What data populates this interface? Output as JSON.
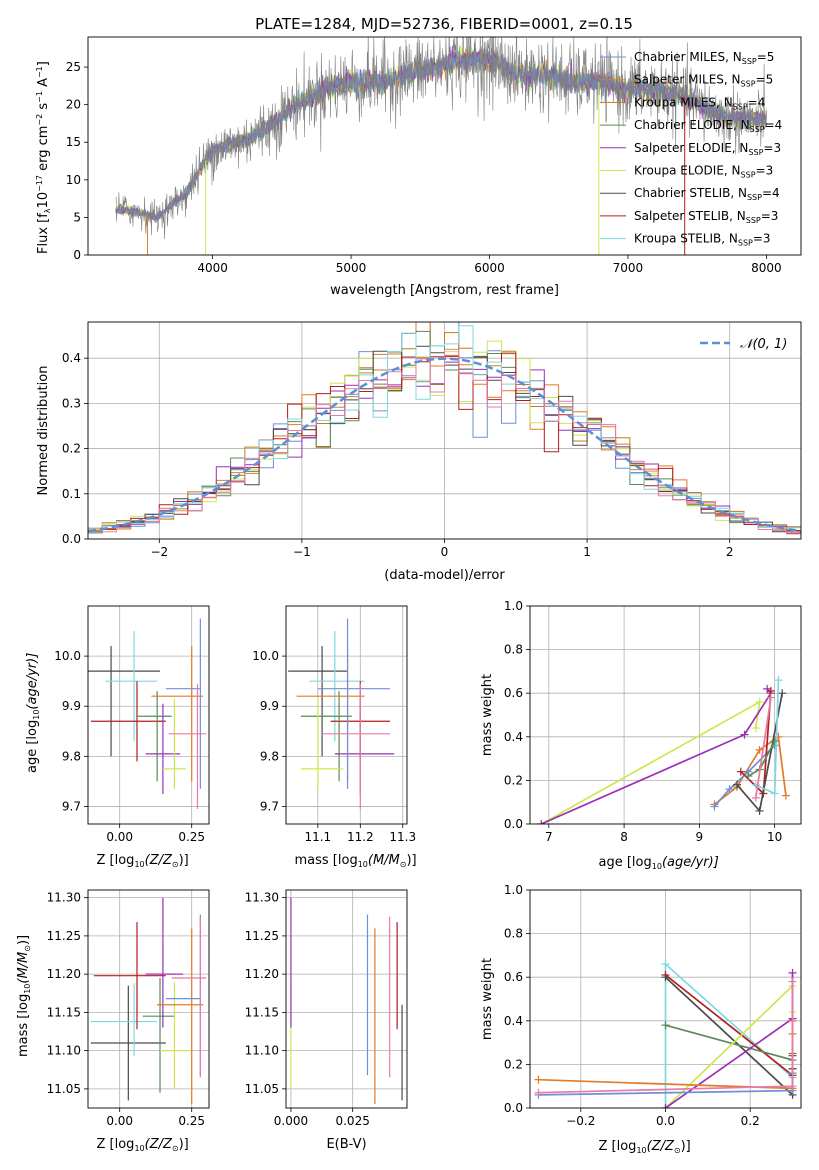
{
  "figure": {
    "title": "PLATE=1284, MJD=52736, FIBERID=0001, z=0.15"
  },
  "colors": {
    "Chabrier MILES": "#6f8fd8",
    "Salpeter MILES": "#e07b27",
    "Kroupa MILES": "#c47a16",
    "Chabrier ELODIE": "#5a8a5a",
    "Salpeter ELODIE": "#9b30b5",
    "Kroupa ELODIE": "#cde84e",
    "Chabrier STELIB": "#4a4a4a",
    "Salpeter STELIB": "#b71c1c",
    "Kroupa STELIB": "#7fd8e0",
    "pink": "#e87aa5",
    "data": "#7f7f7f",
    "normal": "#5b8fd8"
  },
  "chart_data": [
    {
      "id": "spectrum",
      "type": "line",
      "xlabel": "wavelength [Angstrom, rest frame]",
      "ylabel_parts": [
        "Flux [f",
        "λ",
        "10",
        "−17",
        " erg cm",
        "−2",
        " s",
        "−1",
        " A",
        "−1",
        "]"
      ],
      "xlim": [
        3100,
        8250
      ],
      "ylim": [
        0,
        29
      ],
      "xticks": [
        4000,
        5000,
        6000,
        7000,
        8000
      ],
      "yticks": [
        0,
        5,
        10,
        15,
        20,
        25
      ],
      "wavelength_range": [
        3300,
        8000
      ],
      "continuum_x": [
        3300,
        3400,
        3600,
        3800,
        4000,
        4200,
        4400,
        4600,
        4800,
        5000,
        5200,
        5400,
        5600,
        5800,
        6000,
        6200,
        6400,
        6600,
        6800,
        7000,
        7200,
        7400,
        7600,
        7800,
        8000
      ],
      "continuum_y": [
        6,
        6,
        5,
        8,
        14,
        15,
        17,
        20,
        22,
        23,
        23,
        24,
        25,
        26,
        26,
        24,
        24,
        23,
        23,
        22,
        22,
        21,
        19,
        18,
        18
      ],
      "legend": [
        {
          "label": "Chabrier MILES",
          "n": "5"
        },
        {
          "label": "Salpeter MILES",
          "n": "5"
        },
        {
          "label": "Kroupa MILES",
          "n": "4"
        },
        {
          "label": "Chabrier ELODIE",
          "n": "4"
        },
        {
          "label": "Salpeter ELODIE",
          "n": "3"
        },
        {
          "label": "Kroupa ELODIE",
          "n": "3"
        },
        {
          "label": "Chabrier STELIB",
          "n": "4"
        },
        {
          "label": "Salpeter STELIB",
          "n": "3"
        },
        {
          "label": "Kroupa STELIB",
          "n": "3"
        }
      ],
      "legend_n_label": "N",
      "legend_n_sub": "SSP"
    },
    {
      "id": "residuals",
      "type": "histogram",
      "xlabel": "(data-model)/error",
      "ylabel": "Normed distribution",
      "xlim": [
        -2.5,
        2.5
      ],
      "ylim": [
        0,
        0.48
      ],
      "xticks": [
        -2,
        -1,
        0,
        1,
        2
      ],
      "xticklabels": [
        "−2",
        "−1",
        "0",
        "1",
        "2"
      ],
      "yticks": [
        0.0,
        0.1,
        0.2,
        0.3,
        0.4
      ],
      "grid": true,
      "bin_width": 0.1,
      "legend_label": "𝒩(0, 1)",
      "legend_position": "top-right"
    },
    {
      "id": "age-vs-Z",
      "type": "errorbar",
      "xlabel_parts": [
        "Z [log",
        "10",
        "(Z/Z",
        "⊙",
        ")]"
      ],
      "ylabel_parts": [
        "age  [log",
        "10",
        "(age/yr)]"
      ],
      "xlim": [
        -0.11,
        0.31
      ],
      "ylim": [
        9.665,
        10.1
      ],
      "xticks": [
        0.0,
        0.25
      ],
      "xticklabels": [
        "0.00",
        "0.25"
      ],
      "yticks": [
        9.7,
        9.8,
        9.9,
        10.0
      ],
      "grid": true,
      "points": [
        {
          "series": "Chabrier STELIB",
          "x": -0.03,
          "xerr": [
            0.08,
            0.17
          ],
          "y": 9.97,
          "yerr": [
            0.17,
            0.05
          ]
        },
        {
          "series": "Kroupa STELIB",
          "x": 0.05,
          "xerr": [
            0.1,
            0.08
          ],
          "y": 9.95,
          "yerr": [
            0.12,
            0.1
          ]
        },
        {
          "series": "Salpeter STELIB",
          "x": 0.06,
          "xerr": [
            0.16,
            0.1
          ],
          "y": 9.87,
          "yerr": [
            0.08,
            0.08
          ]
        },
        {
          "series": "Chabrier ELODIE",
          "x": 0.13,
          "xerr": [
            0.07,
            0.05
          ],
          "y": 9.88,
          "yerr": [
            0.13,
            0.05
          ]
        },
        {
          "series": "Salpeter ELODIE",
          "x": 0.15,
          "xerr": [
            0.06,
            0.06
          ],
          "y": 9.805,
          "yerr": [
            0.08,
            0.1
          ]
        },
        {
          "series": "Kroupa ELODIE",
          "x": 0.19,
          "xerr": [
            0.04,
            0.04
          ],
          "y": 9.775,
          "yerr": [
            0.04,
            0.14
          ]
        },
        {
          "series": "Salpeter MILES",
          "x": 0.25,
          "xerr": [
            0.14,
            0.04
          ],
          "y": 9.92,
          "yerr": [
            0.17,
            0.1
          ]
        },
        {
          "series": "Chabrier MILES",
          "x": 0.28,
          "xerr": [
            0.12,
            0.0
          ],
          "y": 9.935,
          "yerr": [
            0.2,
            0.14
          ]
        },
        {
          "series": "pink",
          "x": 0.27,
          "xerr": [
            0.1,
            0.03
          ],
          "y": 9.845,
          "yerr": [
            0.15,
            0.1
          ]
        }
      ]
    },
    {
      "id": "age-vs-mass",
      "type": "errorbar",
      "xlabel_parts": [
        "mass [log",
        "10",
        "(M/M",
        "⊙",
        ")]"
      ],
      "ylabel_parts": [],
      "xlim": [
        11.025,
        11.31
      ],
      "ylim": [
        9.665,
        10.1
      ],
      "xticks": [
        11.1,
        11.2,
        11.3
      ],
      "xticklabels": [
        "11.1",
        "11.2",
        "11.3"
      ],
      "yticks": [
        9.7,
        9.8,
        9.9,
        10.0
      ],
      "grid": true,
      "points": [
        {
          "series": "Chabrier STELIB",
          "x": 11.11,
          "xerr": [
            0.08,
            0.06
          ],
          "y": 9.97,
          "yerr": [
            0.17,
            0.05
          ]
        },
        {
          "series": "Kroupa STELIB",
          "x": 11.14,
          "xerr": [
            0.06,
            0.07
          ],
          "y": 9.95,
          "yerr": [
            0.12,
            0.1
          ]
        },
        {
          "series": "Salpeter STELIB",
          "x": 11.2,
          "xerr": [
            0.07,
            0.07
          ],
          "y": 9.87,
          "yerr": [
            0.08,
            0.08
          ]
        },
        {
          "series": "Chabrier ELODIE",
          "x": 11.15,
          "xerr": [
            0.09,
            0.03
          ],
          "y": 9.88,
          "yerr": [
            0.13,
            0.05
          ]
        },
        {
          "series": "Salpeter ELODIE",
          "x": 11.2,
          "xerr": [
            0.06,
            0.08
          ],
          "y": 9.805,
          "yerr": [
            0.08,
            0.1
          ]
        },
        {
          "series": "Kroupa ELODIE",
          "x": 11.1,
          "xerr": [
            0.04,
            0.06
          ],
          "y": 9.775,
          "yerr": [
            0.04,
            0.14
          ]
        },
        {
          "series": "Salpeter MILES",
          "x": 11.17,
          "xerr": [
            0.12,
            0.04
          ],
          "y": 9.92,
          "yerr": [
            0.17,
            0.1
          ]
        },
        {
          "series": "Chabrier MILES",
          "x": 11.17,
          "xerr": [
            0.07,
            0.1
          ],
          "y": 9.935,
          "yerr": [
            0.2,
            0.14
          ]
        },
        {
          "series": "pink",
          "x": 11.2,
          "xerr": [
            0.09,
            0.07
          ],
          "y": 9.845,
          "yerr": [
            0.15,
            0.1
          ]
        }
      ]
    },
    {
      "id": "weight-vs-age",
      "type": "line",
      "xlabel_parts": [
        "age  [log",
        "10",
        "(age/yr)]"
      ],
      "ylabel": "mass weight",
      "xlim": [
        6.75,
        10.35
      ],
      "ylim": [
        0,
        1
      ],
      "xticks": [
        7,
        8,
        9,
        10
      ],
      "yticks": [
        0.0,
        0.2,
        0.4,
        0.6,
        0.8,
        1.0
      ],
      "grid": true,
      "series": [
        {
          "name": "Kroupa ELODIE",
          "x": [
            6.9,
            9.8,
            9.75
          ],
          "y": [
            0.0,
            0.56,
            0.44
          ]
        },
        {
          "name": "Salpeter ELODIE",
          "x": [
            6.9,
            9.6,
            9.95,
            9.9
          ],
          "y": [
            0.0,
            0.41,
            0.6,
            0.62
          ]
        },
        {
          "name": "Salpeter MILES",
          "x": [
            9.2,
            9.5,
            9.8,
            10.05,
            10.15
          ],
          "y": [
            0.09,
            0.17,
            0.34,
            0.4,
            0.13
          ]
        },
        {
          "name": "Chabrier MILES",
          "x": [
            9.2,
            9.4,
            9.65,
            10.0
          ],
          "y": [
            0.08,
            0.16,
            0.24,
            0.36
          ]
        },
        {
          "name": "Salpeter STELIB",
          "x": [
            9.55,
            9.85,
            9.95
          ],
          "y": [
            0.24,
            0.14,
            0.61
          ]
        },
        {
          "name": "Chabrier STELIB",
          "x": [
            9.5,
            9.8,
            10.1
          ],
          "y": [
            0.18,
            0.06,
            0.6
          ]
        },
        {
          "name": "Kroupa STELIB",
          "x": [
            9.75,
            10.0,
            10.05
          ],
          "y": [
            0.18,
            0.14,
            0.66
          ]
        },
        {
          "name": "Chabrier ELODIE",
          "x": [
            9.65,
            9.8,
            10.0
          ],
          "y": [
            0.22,
            0.25,
            0.38
          ]
        },
        {
          "name": "pink",
          "x": [
            9.75,
            9.95
          ],
          "y": [
            0.12,
            0.58
          ]
        }
      ]
    },
    {
      "id": "mass-vs-Z",
      "type": "errorbar",
      "xlabel_parts": [
        "Z [log",
        "10",
        "(Z/Z",
        "⊙",
        ")]"
      ],
      "ylabel_parts": [
        "mass [log",
        "10",
        "(M/M",
        "⊙",
        ")]"
      ],
      "xlim": [
        -0.11,
        0.31
      ],
      "ylim": [
        11.025,
        11.31
      ],
      "xticks": [
        0.0,
        0.25
      ],
      "xticklabels": [
        "0.00",
        "0.25"
      ],
      "yticks": [
        11.05,
        11.1,
        11.15,
        11.2,
        11.25,
        11.3
      ],
      "grid": true,
      "points": [
        {
          "series": "Chabrier STELIB",
          "x": 0.03,
          "xerr": [
            0.13,
            0.13
          ],
          "y": 11.11,
          "yerr": [
            0.075,
            0.075
          ]
        },
        {
          "series": "Kroupa STELIB",
          "x": 0.05,
          "xerr": [
            0.15,
            0.08
          ],
          "y": 11.138,
          "yerr": [
            0.045,
            0.05
          ]
        },
        {
          "series": "Salpeter STELIB",
          "x": 0.06,
          "xerr": [
            0.15,
            0.1
          ],
          "y": 11.198,
          "yerr": [
            0.07,
            0.07
          ]
        },
        {
          "series": "Chabrier ELODIE",
          "x": 0.14,
          "xerr": [
            0.06,
            0.05
          ],
          "y": 11.145,
          "yerr": [
            0.1,
            0.05
          ]
        },
        {
          "series": "Salpeter ELODIE",
          "x": 0.15,
          "xerr": [
            0.06,
            0.07
          ],
          "y": 11.2,
          "yerr": [
            0.07,
            0.1
          ]
        },
        {
          "series": "Kroupa ELODIE",
          "x": 0.19,
          "xerr": [
            0.05,
            0.05
          ],
          "y": 11.1,
          "yerr": [
            0.05,
            0.09
          ]
        },
        {
          "series": "Salpeter MILES",
          "x": 0.25,
          "xerr": [
            0.12,
            0.04
          ],
          "y": 11.16,
          "yerr": [
            0.13,
            0.1
          ]
        },
        {
          "series": "Chabrier MILES",
          "x": 0.28,
          "xerr": [
            0.12,
            0.0
          ],
          "y": 11.168,
          "yerr": [
            0.1,
            0.11
          ]
        },
        {
          "series": "pink",
          "x": 0.28,
          "xerr": [
            0.1,
            0.02
          ],
          "y": 11.195,
          "yerr": [
            0.13,
            0.08
          ]
        }
      ]
    },
    {
      "id": "mass-vs-ebv",
      "type": "errorbar",
      "xlabel": "E(B-V)",
      "ylabel_parts": [],
      "xlim": [
        -0.002,
        0.047
      ],
      "ylim": [
        11.025,
        11.31
      ],
      "xticks": [
        0.0,
        0.025
      ],
      "xticklabels": [
        "0.000",
        "0.025"
      ],
      "yticks": [
        11.05,
        11.1,
        11.15,
        11.2,
        11.25,
        11.3
      ],
      "grid": true,
      "points": [
        {
          "series": "Kroupa ELODIE",
          "x": 0.0,
          "xerr": [
            0,
            0
          ],
          "y": 11.1,
          "yerr": [
            0.05,
            0.09
          ]
        },
        {
          "series": "Salpeter ELODIE",
          "x": 0.0,
          "xerr": [
            0,
            0
          ],
          "y": 11.2,
          "yerr": [
            0.07,
            0.1
          ]
        },
        {
          "series": "Chabrier MILES",
          "x": 0.031,
          "xerr": [
            0,
            0
          ],
          "y": 11.168,
          "yerr": [
            0.1,
            0.11
          ]
        },
        {
          "series": "Salpeter MILES",
          "x": 0.034,
          "xerr": [
            0,
            0
          ],
          "y": 11.16,
          "yerr": [
            0.13,
            0.1
          ]
        },
        {
          "series": "pink",
          "x": 0.04,
          "xerr": [
            0,
            0
          ],
          "y": 11.195,
          "yerr": [
            0.13,
            0.08
          ]
        },
        {
          "series": "Salpeter STELIB",
          "x": 0.043,
          "xerr": [
            0,
            0
          ],
          "y": 11.198,
          "yerr": [
            0.07,
            0.07
          ]
        },
        {
          "series": "Chabrier STELIB",
          "x": 0.045,
          "xerr": [
            0,
            0
          ],
          "y": 11.11,
          "yerr": [
            0.075,
            0.05
          ]
        }
      ]
    },
    {
      "id": "weight-vs-Z",
      "type": "line",
      "xlabel_parts": [
        "Z [log",
        "10",
        "(Z/Z",
        "⊙",
        ")]"
      ],
      "ylabel": "mass weight",
      "xlim": [
        -0.32,
        0.32
      ],
      "ylim": [
        0,
        1
      ],
      "xticks": [
        -0.2,
        0.0,
        0.2
      ],
      "xticklabels": [
        "−0.2",
        "0.0",
        "0.2"
      ],
      "yticks": [
        0.0,
        0.2,
        0.4,
        0.6,
        0.8,
        1.0
      ],
      "grid": true,
      "series": [
        {
          "name": "Kroupa STELIB",
          "x": [
            0.0,
            0.0,
            0.3,
            0.3
          ],
          "y": [
            0.0,
            0.66,
            0.14,
            0.18
          ]
        },
        {
          "name": "Salpeter STELIB",
          "x": [
            0.0,
            0.3,
            0.3
          ],
          "y": [
            0.61,
            0.15,
            0.24
          ]
        },
        {
          "name": "Chabrier STELIB",
          "x": [
            0.0,
            0.3,
            0.3
          ],
          "y": [
            0.6,
            0.06,
            0.18
          ]
        },
        {
          "name": "Chabrier ELODIE",
          "x": [
            0.0,
            0.3,
            0.3
          ],
          "y": [
            0.38,
            0.22,
            0.25
          ]
        },
        {
          "name": "Kroupa ELODIE",
          "x": [
            0.0,
            0.3,
            0.3
          ],
          "y": [
            0.0,
            0.56,
            0.44
          ]
        },
        {
          "name": "Salpeter ELODIE",
          "x": [
            0.0,
            0.3,
            0.3
          ],
          "y": [
            0.0,
            0.41,
            0.62
          ]
        },
        {
          "name": "Salpeter MILES",
          "x": [
            -0.3,
            0.3,
            0.3,
            0.3
          ],
          "y": [
            0.13,
            0.09,
            0.34,
            0.4
          ]
        },
        {
          "name": "Chabrier MILES",
          "x": [
            -0.3,
            0.3,
            0.3
          ],
          "y": [
            0.06,
            0.08,
            0.16
          ]
        },
        {
          "name": "pink",
          "x": [
            -0.3,
            0.3,
            0.3
          ],
          "y": [
            0.07,
            0.1,
            0.58
          ]
        }
      ]
    }
  ]
}
